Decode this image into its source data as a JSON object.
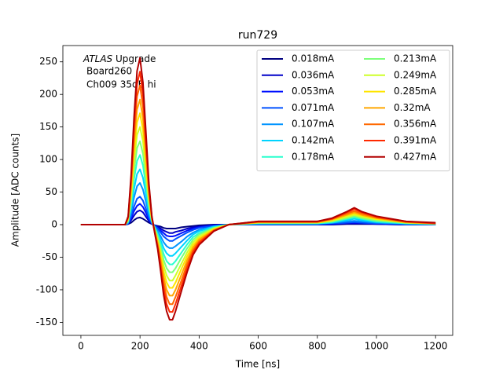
{
  "chart_data": {
    "type": "line",
    "title": "run729",
    "x_label": "Time [ns]",
    "y_label": "Amplitude [ADC counts]",
    "annotations": [
      "ATLAS",
      "Upgrade",
      "Board260",
      "Ch009 35dB hi"
    ],
    "xlim": [
      -61,
      1258
    ],
    "ylim": [
      -170,
      275
    ],
    "xticks": [
      0,
      200,
      400,
      600,
      800,
      1000,
      1200
    ],
    "yticks": [
      -150,
      -100,
      -50,
      0,
      50,
      100,
      150,
      200,
      250
    ],
    "legend": "upper right",
    "legend_columns": 2,
    "x": [
      0,
      100,
      150,
      160,
      170,
      180,
      190,
      200,
      210,
      220,
      230,
      240,
      250,
      260,
      270,
      280,
      290,
      300,
      310,
      320,
      340,
      360,
      380,
      400,
      450,
      500,
      600,
      800,
      850,
      900,
      925,
      950,
      1000,
      1100,
      1200
    ],
    "series": [
      {
        "name": "0.018mA",
        "color": "#000080",
        "values": [
          0,
          0,
          0,
          1,
          3,
          7,
          10,
          11,
          9,
          6,
          3,
          1,
          -1,
          -2,
          -3,
          -5,
          -6,
          -6,
          -6,
          -6,
          -4,
          -3,
          -2,
          -1,
          0,
          0,
          0,
          0,
          0,
          1,
          1,
          1,
          1,
          0,
          0
        ]
      },
      {
        "name": "0.036mA",
        "color": "#0000c8",
        "values": [
          0,
          0,
          0,
          1,
          7,
          14,
          20,
          22,
          19,
          12,
          6,
          1,
          -1,
          -3,
          -6,
          -9,
          -11,
          -13,
          -13,
          -11,
          -9,
          -6,
          -4,
          -3,
          -1,
          0,
          0,
          0,
          1,
          2,
          2,
          2,
          1,
          0,
          0
        ]
      },
      {
        "name": "0.053mA",
        "color": "#0010ff",
        "values": [
          0,
          0,
          0,
          2,
          10,
          21,
          29,
          32,
          27,
          18,
          8,
          2,
          -2,
          -5,
          -9,
          -13,
          -17,
          -18,
          -18,
          -17,
          -13,
          -9,
          -6,
          -4,
          -1,
          0,
          1,
          1,
          1,
          3,
          3,
          3,
          2,
          1,
          0
        ]
      },
      {
        "name": "0.071mA",
        "color": "#0050ff",
        "values": [
          0,
          0,
          0,
          2,
          13,
          28,
          40,
          43,
          37,
          24,
          11,
          2,
          -2,
          -6,
          -12,
          -18,
          -22,
          -25,
          -25,
          -22,
          -17,
          -12,
          -8,
          -5,
          -2,
          0,
          1,
          1,
          2,
          3,
          4,
          3,
          2,
          1,
          0
        ]
      },
      {
        "name": "0.107mA",
        "color": "#0094ff",
        "values": [
          0,
          0,
          0,
          3,
          19,
          42,
          59,
          64,
          54,
          35,
          16,
          3,
          -3,
          -10,
          -18,
          -27,
          -33,
          -36,
          -36,
          -33,
          -26,
          -18,
          -12,
          -8,
          -3,
          0,
          1,
          1,
          3,
          5,
          6,
          5,
          3,
          1,
          1
        ]
      },
      {
        "name": "0.142mA",
        "color": "#00d4ff",
        "values": [
          0,
          0,
          0,
          4,
          26,
          55,
          78,
          85,
          72,
          47,
          21,
          4,
          -4,
          -13,
          -24,
          -36,
          -44,
          -48,
          -48,
          -44,
          -34,
          -24,
          -15,
          -10,
          -3,
          0,
          2,
          2,
          3,
          7,
          9,
          7,
          4,
          2,
          1
        ]
      },
      {
        "name": "0.178mA",
        "color": "#29ffce",
        "values": [
          0,
          0,
          0,
          5,
          32,
          70,
          98,
          107,
          91,
          59,
          27,
          5,
          -5,
          -16,
          -30,
          -45,
          -56,
          -61,
          -61,
          -56,
          -43,
          -30,
          -19,
          -13,
          -4,
          0,
          2,
          2,
          4,
          9,
          11,
          9,
          5,
          2,
          1
        ]
      },
      {
        "name": "0.213mA",
        "color": "#7dff7a",
        "values": [
          0,
          0,
          0,
          6,
          38,
          83,
          118,
          128,
          109,
          70,
          32,
          6,
          -6,
          -19,
          -36,
          -54,
          -67,
          -73,
          -73,
          -67,
          -51,
          -36,
          -23,
          -15,
          -5,
          0,
          3,
          3,
          5,
          10,
          13,
          10,
          6,
          3,
          1
        ]
      },
      {
        "name": "0.249mA",
        "color": "#ceff29",
        "values": [
          0,
          0,
          0,
          8,
          45,
          98,
          138,
          150,
          128,
          83,
          38,
          8,
          -8,
          -23,
          -42,
          -63,
          -78,
          -86,
          -86,
          -78,
          -60,
          -42,
          -27,
          -18,
          -6,
          0,
          3,
          3,
          6,
          12,
          15,
          12,
          8,
          3,
          2
        ]
      },
      {
        "name": "0.285mA",
        "color": "#ffe500",
        "values": [
          0,
          0,
          0,
          9,
          51,
          111,
          157,
          171,
          145,
          94,
          43,
          9,
          -9,
          -26,
          -48,
          -72,
          -89,
          -97,
          -97,
          -89,
          -68,
          -48,
          -31,
          -21,
          -7,
          0,
          3,
          3,
          7,
          14,
          17,
          14,
          9,
          3,
          2
        ]
      },
      {
        "name": "0.32mA",
        "color": "#ffa700",
        "values": [
          0,
          0,
          0,
          10,
          58,
          125,
          177,
          192,
          163,
          106,
          48,
          10,
          -10,
          -29,
          -54,
          -81,
          -100,
          -109,
          -109,
          -100,
          -77,
          -54,
          -35,
          -23,
          -8,
          0,
          4,
          4,
          8,
          15,
          19,
          15,
          10,
          4,
          2
        ]
      },
      {
        "name": "0.356mA",
        "color": "#ff6800",
        "values": [
          0,
          0,
          0,
          11,
          64,
          139,
          197,
          214,
          182,
          118,
          54,
          11,
          -11,
          -32,
          -60,
          -90,
          -111,
          -122,
          -122,
          -111,
          -86,
          -60,
          -39,
          -26,
          -9,
          0,
          4,
          4,
          9,
          17,
          21,
          17,
          11,
          4,
          2
        ]
      },
      {
        "name": "0.391mA",
        "color": "#ff2900",
        "values": [
          0,
          0,
          0,
          12,
          71,
          153,
          216,
          235,
          200,
          129,
          59,
          12,
          -12,
          -35,
          -66,
          -99,
          -122,
          -134,
          -134,
          -122,
          -94,
          -66,
          -42,
          -28,
          -9,
          0,
          5,
          5,
          9,
          19,
          24,
          19,
          12,
          5,
          2
        ]
      },
      {
        "name": "0.427mA",
        "color": "#b20000",
        "values": [
          0,
          0,
          0,
          13,
          77,
          166,
          236,
          256,
          218,
          141,
          64,
          13,
          -13,
          -38,
          -72,
          -108,
          -133,
          -146,
          -146,
          -133,
          -102,
          -72,
          -46,
          -31,
          -10,
          0,
          5,
          5,
          10,
          20,
          26,
          20,
          13,
          5,
          3
        ]
      }
    ]
  }
}
